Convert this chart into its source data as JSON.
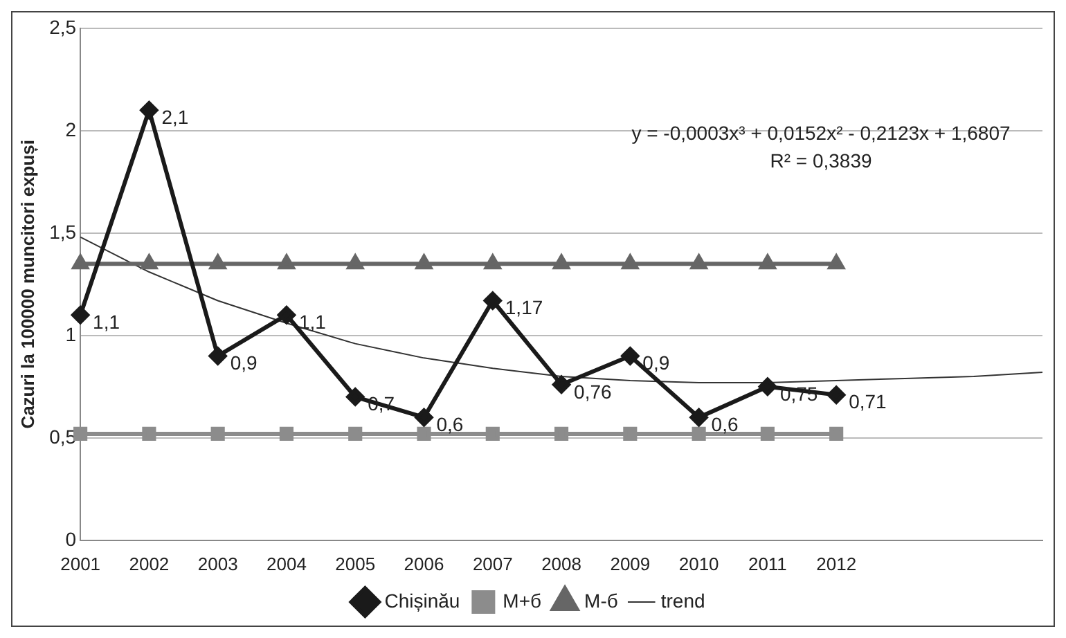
{
  "chart_data": {
    "type": "line",
    "ylabel": "Cazuri la 100000 muncitori expuși",
    "categories": [
      "2001",
      "2002",
      "2003",
      "2004",
      "2005",
      "2006",
      "2007",
      "2008",
      "2009",
      "2010",
      "2011",
      "2012",
      null,
      null,
      null
    ],
    "series": [
      {
        "name": "Chișinău",
        "color": "#1a1a1a",
        "marker": "diamond",
        "values": [
          1.1,
          2.1,
          0.9,
          1.1,
          0.7,
          0.6,
          1.17,
          0.76,
          0.9,
          0.6,
          0.75,
          0.71,
          null,
          null,
          null
        ],
        "value_labels": [
          "1,1",
          "2,1",
          "0,9",
          "1,1",
          "0,7",
          "0,6",
          "1,17",
          "0,76",
          "0,9",
          "0,6",
          "0,75",
          "0,71",
          null,
          null,
          null
        ]
      },
      {
        "name": "M+б",
        "color": "#8c8c8c",
        "marker": "square",
        "values": [
          0.52,
          0.52,
          0.52,
          0.52,
          0.52,
          0.52,
          0.52,
          0.52,
          0.52,
          0.52,
          0.52,
          0.52,
          null,
          null,
          null
        ]
      },
      {
        "name": "M-б",
        "color": "#666666",
        "marker": "triangle",
        "values": [
          1.35,
          1.35,
          1.35,
          1.35,
          1.35,
          1.35,
          1.35,
          1.35,
          1.35,
          1.35,
          1.35,
          1.35,
          null,
          null,
          null
        ]
      },
      {
        "name": "trend",
        "color": "#333333",
        "marker": "none",
        "values": [
          1.48,
          1.31,
          1.17,
          1.06,
          0.96,
          0.89,
          0.84,
          0.8,
          0.78,
          0.77,
          0.77,
          0.78,
          0.79,
          0.8,
          0.82
        ]
      }
    ],
    "ylim": [
      0,
      2.5
    ],
    "yticks": [
      0,
      {
        "value": 0.5,
        "label": "0,5"
      },
      1,
      {
        "value": 1.5,
        "label": "1,5"
      },
      2,
      {
        "value": 2.5,
        "label": "2,5"
      }
    ],
    "grid": "y",
    "legend": "bottom",
    "annotations": [
      "y = -0,0003x³ + 0,0152x² - 0,2123x + 1,6807",
      "R² = 0,3839"
    ]
  }
}
